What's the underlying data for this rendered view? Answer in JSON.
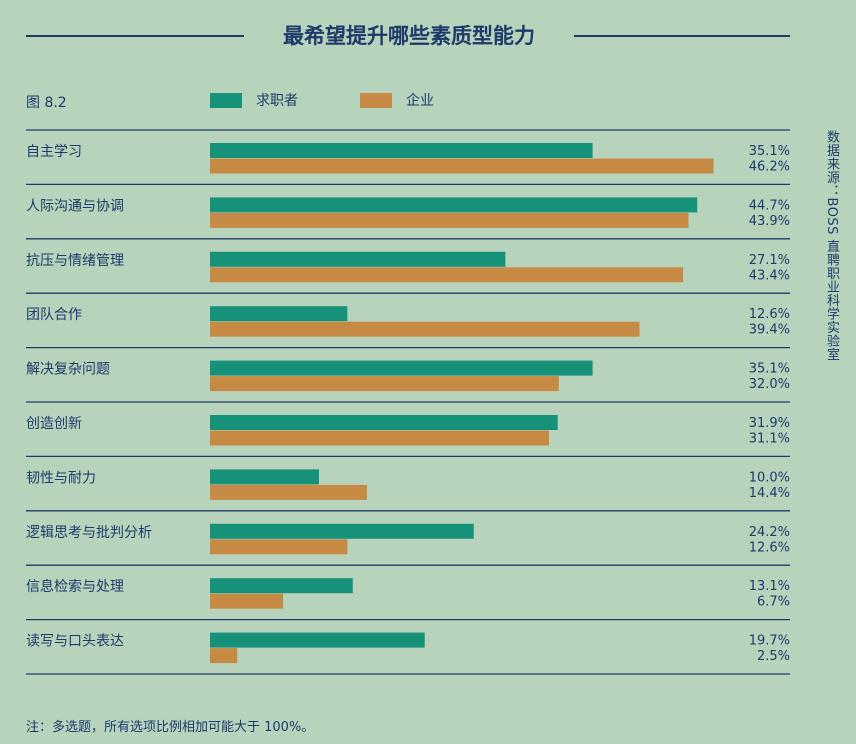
{
  "title": "最希望提升哪些素质型能力",
  "figure_label": "图 8.2",
  "source": "数据来源：BOSS 直聘职业科学实验室",
  "note": "注：多选题，所有选项比例相加可能大于 100%。",
  "colors": {
    "background": "#b8d3bc",
    "text": "#1d3a6a",
    "seeker": "#16917a",
    "enterprise": "#c68a45"
  },
  "chart_data": {
    "type": "bar",
    "orientation": "horizontal",
    "categories": [
      "自主学习",
      "人际沟通与协调",
      "抗压与情绪管理",
      "团队合作",
      "解决复杂问题",
      "创造创新",
      "韧性与耐力",
      "逻辑思考与批判分析",
      "信息检索与处理",
      "读写与口头表达"
    ],
    "series": [
      {
        "name": "求职者",
        "color": "#16917a",
        "values": [
          35.1,
          44.7,
          27.1,
          12.6,
          35.1,
          31.9,
          10.0,
          24.2,
          13.1,
          19.7
        ],
        "labels": [
          "35.1%",
          "44.7%",
          "27.1%",
          "12.6%",
          "35.1%",
          "31.9%",
          "10.0%",
          "24.2%",
          "13.1%",
          "19.7%"
        ]
      },
      {
        "name": "企业",
        "color": "#c68a45",
        "values": [
          46.2,
          43.9,
          43.4,
          39.4,
          32.0,
          31.1,
          14.4,
          12.6,
          6.7,
          2.5
        ],
        "labels": [
          "46.2%",
          "43.9%",
          "43.4%",
          "39.4%",
          "32.0%",
          "31.1%",
          "14.4%",
          "12.6%",
          "6.7%",
          "2.5%"
        ]
      }
    ],
    "xlim": [
      0,
      50
    ],
    "legend": "top",
    "grid": false
  }
}
